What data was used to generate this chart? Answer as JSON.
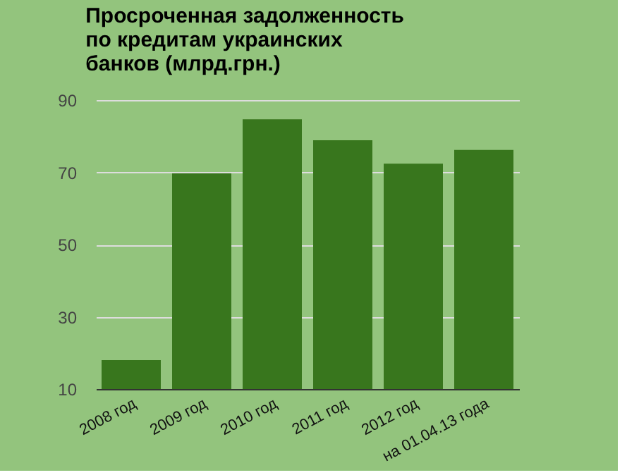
{
  "chart_data": {
    "type": "bar",
    "title": "Просроченная задолженность по кредитам украинских банков (млрд.грн.)",
    "categories": [
      "2008 год",
      "2009 год",
      "2010 год",
      "2011 год",
      "2012 год",
      "на 01.04.13 года"
    ],
    "values": [
      18.0,
      69.7,
      84.7,
      78.9,
      72.4,
      76.2
    ],
    "color": "#38761d",
    "ylim": [
      10,
      90
    ],
    "yticks": [
      10,
      30,
      50,
      70,
      90
    ],
    "grid": "y",
    "legend": false
  }
}
